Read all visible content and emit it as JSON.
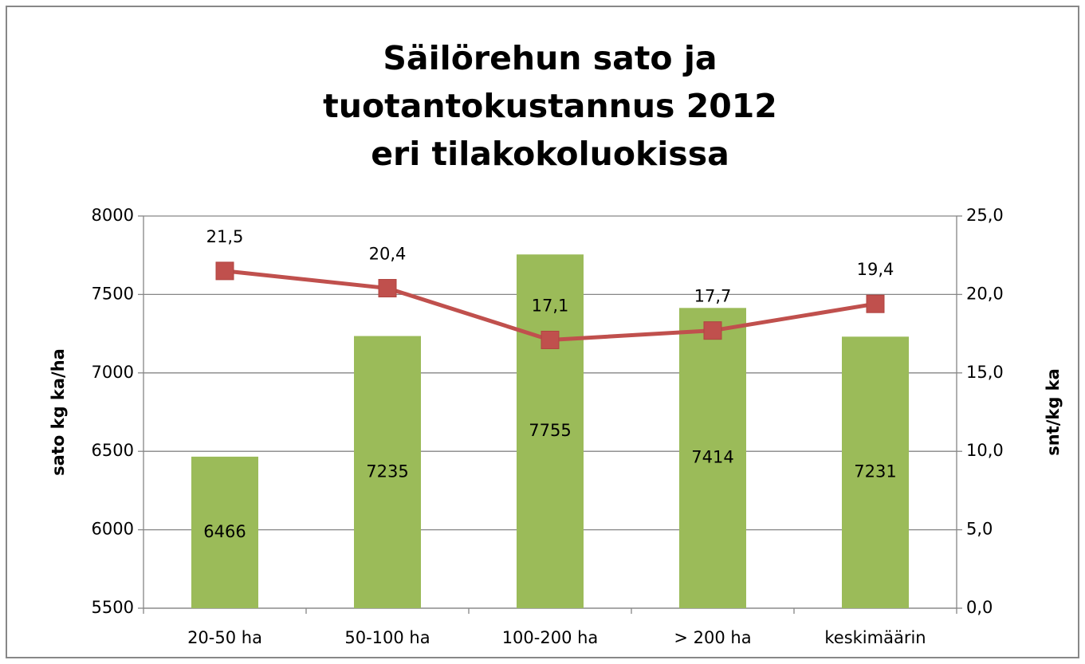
{
  "chart_data": {
    "type": "bar",
    "title": [
      "Säilörehun sato ja",
      "tuotantokustannus 2012",
      "eri tilakokoluokissa"
    ],
    "ylabel": "sato kg ka/ha",
    "y2label": "snt/kg ka",
    "categories": [
      "20-50 ha",
      "50-100 ha",
      "100-200 ha",
      "> 200 ha",
      "keskimäärin"
    ],
    "series": [
      {
        "type": "bar",
        "color": "#9bbb59",
        "values": [
          6466,
          7235,
          7755,
          7414,
          7231
        ]
      },
      {
        "type": "line",
        "axis": "y2",
        "color": "#c0504d",
        "values": [
          21.5,
          20.4,
          17.1,
          17.7,
          19.4
        ],
        "value_labels": [
          "21,5",
          "20,4",
          "17,1",
          "17,7",
          "19,4"
        ]
      }
    ],
    "ylim": [
      5500,
      8000
    ],
    "yticks": [
      5500,
      6000,
      6500,
      7000,
      7500,
      8000
    ],
    "y2lim": [
      0,
      25
    ],
    "y2ticks": [
      {
        "value": 0,
        "label": "0,0"
      },
      {
        "value": 5,
        "label": "5,0"
      },
      {
        "value": 10,
        "label": "10,0"
      },
      {
        "value": 15,
        "label": "15,0"
      },
      {
        "value": 20,
        "label": "20,0"
      },
      {
        "value": 25,
        "label": "25,0"
      }
    ],
    "grid": true
  }
}
